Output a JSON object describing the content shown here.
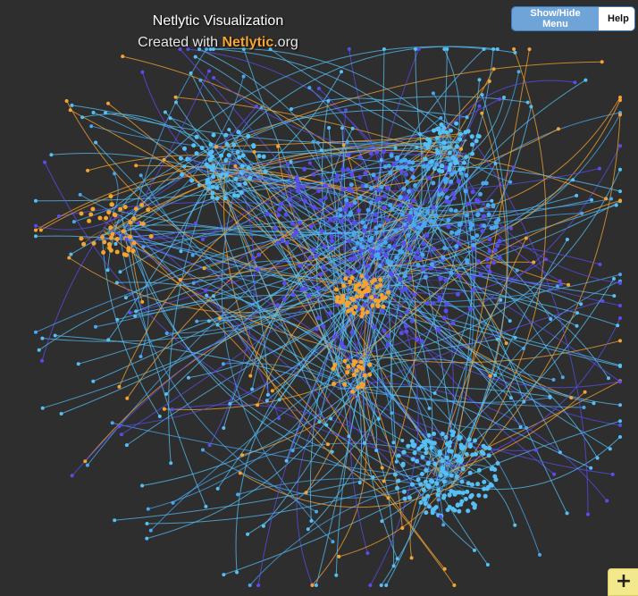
{
  "header": {
    "title": "Netlytic Visualization",
    "subtitle_prefix": "Created with ",
    "subtitle_brand": "Netlytic",
    "subtitle_suffix": ".org"
  },
  "toolbar": {
    "menu_label": "Show/Hide Menu",
    "help_label": "Help"
  },
  "zoom": {
    "plus_label": "+"
  },
  "colors": {
    "background": "#2e2e2e",
    "cluster_purple": "#5a4df0",
    "cluster_blue": "#4aa8f0",
    "cluster_lightblue": "#56c0f5",
    "cluster_orange": "#f5a431",
    "brand": "#f5a431",
    "button_active": "#6fa4d8"
  }
}
